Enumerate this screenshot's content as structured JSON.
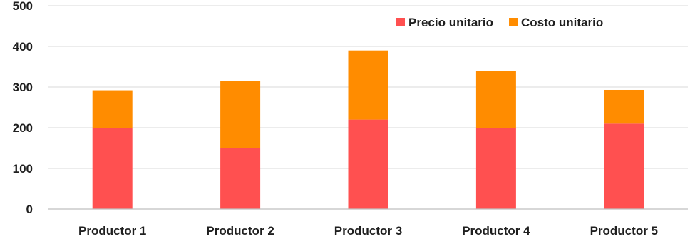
{
  "chart_data": {
    "type": "bar",
    "stacked": true,
    "title": "",
    "xlabel": "",
    "ylabel": "",
    "categories": [
      "Productor 1",
      "Productor 2",
      "Productor 3",
      "Productor 4",
      "Productor 5"
    ],
    "series": [
      {
        "name": "Precio unitario",
        "color": "#ff5050",
        "values": [
          200,
          150,
          220,
          200,
          210
        ]
      },
      {
        "name": "Costo unitario",
        "color": "#ff8c00",
        "values": [
          92,
          165,
          170,
          140,
          83
        ]
      }
    ],
    "ylim": [
      0,
      500
    ],
    "yticks": [
      "0",
      "100",
      "200",
      "300",
      "400",
      "500"
    ],
    "grid": true,
    "legend_position": "top-right"
  }
}
